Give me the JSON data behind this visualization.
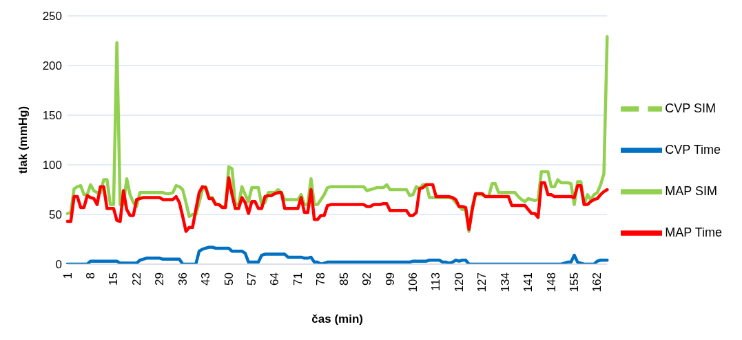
{
  "chart_data": {
    "type": "line",
    "xlabel": "čas (min)",
    "ylabel": "tlak (mmHg)",
    "ylim": [
      0,
      250
    ],
    "yticks": [
      0,
      50,
      100,
      150,
      200,
      250
    ],
    "grid": "y",
    "legend": "right",
    "categories": [
      "1",
      null,
      null,
      null,
      null,
      null,
      null,
      "8",
      null,
      null,
      null,
      null,
      null,
      null,
      "15",
      null,
      null,
      null,
      null,
      null,
      null,
      "22",
      null,
      null,
      null,
      null,
      null,
      null,
      "29",
      null,
      null,
      null,
      null,
      null,
      null,
      "36",
      null,
      null,
      null,
      null,
      null,
      null,
      "43",
      null,
      null,
      null,
      null,
      null,
      null,
      "50",
      null,
      null,
      null,
      null,
      null,
      null,
      "57",
      null,
      null,
      null,
      null,
      null,
      null,
      "64",
      null,
      null,
      null,
      null,
      null,
      null,
      "71",
      null,
      null,
      null,
      null,
      null,
      null,
      "78",
      null,
      null,
      null,
      null,
      null,
      null,
      "85",
      null,
      null,
      null,
      null,
      null,
      null,
      "92",
      null,
      null,
      null,
      null,
      null,
      null,
      "99",
      null,
      null,
      null,
      null,
      null,
      null,
      "106",
      null,
      null,
      null,
      null,
      null,
      null,
      "113",
      null,
      null,
      null,
      null,
      null,
      null,
      "120",
      null,
      null,
      null,
      null,
      null,
      null,
      "127",
      null,
      null,
      null,
      null,
      null,
      null,
      "134",
      null,
      null,
      null,
      null,
      null,
      null,
      "141",
      null,
      null,
      null,
      null,
      null,
      null,
      "148",
      null,
      null,
      null,
      null,
      null,
      null,
      "155",
      null,
      null,
      null,
      null,
      null,
      null,
      "162",
      null,
      null,
      null
    ],
    "series": [
      {
        "name": "CVP SIM",
        "color": "#92d050",
        "line_style": "dashed",
        "values": [
          null,
          null,
          null,
          null,
          null,
          null,
          null,
          null,
          null,
          null,
          null,
          null,
          null,
          null,
          null,
          null,
          null,
          null,
          null,
          null,
          null,
          null,
          null,
          null,
          null,
          null,
          null,
          null,
          null,
          null,
          null,
          null,
          null,
          null,
          null,
          null,
          null,
          null,
          null,
          null,
          null,
          null,
          null,
          null,
          null,
          null,
          null,
          null,
          null,
          null,
          null,
          null,
          null,
          null,
          null,
          null,
          null,
          null,
          null,
          null,
          null,
          null,
          null,
          null,
          null,
          null,
          null,
          null,
          null,
          null,
          null,
          null,
          null,
          null,
          null,
          null,
          null,
          null,
          null,
          null,
          null,
          null,
          null,
          null,
          null,
          null,
          null,
          null,
          null,
          null,
          null,
          null,
          null,
          null,
          null,
          null,
          null,
          null,
          null,
          null,
          null,
          null,
          null,
          null,
          null,
          null,
          null,
          null,
          null,
          null,
          null,
          null,
          null,
          null,
          null,
          null,
          null,
          null,
          null,
          null,
          null,
          null,
          null,
          null,
          null,
          null,
          null,
          null,
          null,
          null,
          null,
          null,
          null,
          null,
          null,
          null,
          null,
          null,
          null,
          null,
          null,
          null,
          null,
          null,
          null,
          null,
          null,
          null,
          null,
          null,
          null,
          null,
          null,
          null,
          null,
          null,
          null,
          null,
          null,
          null,
          null,
          null,
          null,
          null,
          null
        ]
      },
      {
        "name": "CVP Time",
        "color": "#0070c0",
        "line_style": "solid",
        "values": [
          0,
          0,
          0,
          0,
          0,
          0,
          0,
          3,
          3,
          3,
          3,
          3,
          3,
          3,
          3,
          3,
          1,
          1,
          1,
          1,
          1,
          1,
          4,
          5,
          6,
          6,
          6,
          6,
          6,
          5,
          5,
          5,
          5,
          5,
          5,
          0,
          0,
          0,
          0,
          0,
          13,
          15,
          16,
          17,
          17,
          16,
          16,
          16,
          16,
          16,
          13,
          13,
          13,
          13,
          11,
          2,
          2,
          2,
          2,
          9,
          10,
          10,
          10,
          10,
          10,
          10,
          10,
          7,
          7,
          7,
          7,
          7,
          6,
          6,
          7,
          2,
          2,
          0,
          1,
          2,
          2,
          2,
          2,
          2,
          2,
          2,
          2,
          2,
          2,
          2,
          2,
          2,
          2,
          2,
          2,
          2,
          2,
          2,
          2,
          2,
          2,
          2,
          2,
          2,
          2,
          3,
          3,
          3,
          3,
          3,
          4,
          4,
          4,
          4,
          2,
          2,
          1,
          2,
          4,
          3,
          4,
          4,
          0,
          0,
          0,
          0,
          0,
          0,
          0,
          0,
          0,
          0,
          0,
          0,
          0,
          0,
          0,
          0,
          0,
          0,
          0,
          0,
          0,
          0,
          0,
          0,
          0,
          0,
          0,
          0,
          0,
          1,
          2,
          2,
          9,
          2,
          1,
          0,
          0,
          0,
          0,
          3,
          4,
          4,
          4
        ]
      },
      {
        "name": "MAP SIM",
        "color": "#92d050",
        "line_style": "solid",
        "values": [
          51,
          52,
          76,
          78,
          79,
          70,
          70,
          80,
          74,
          72,
          72,
          85,
          85,
          60,
          60,
          223,
          60,
          60,
          86,
          70,
          62,
          58,
          72,
          72,
          72,
          72,
          72,
          72,
          72,
          72,
          71,
          71,
          72,
          79,
          78,
          75,
          62,
          48,
          50,
          50,
          62,
          75,
          78,
          67,
          67,
          61,
          60,
          58,
          58,
          98,
          96,
          60,
          60,
          78,
          70,
          63,
          77,
          77,
          77,
          60,
          62,
          72,
          72,
          72,
          75,
          72,
          65,
          65,
          65,
          65,
          65,
          70,
          60,
          60,
          86,
          60,
          60,
          65,
          70,
          77,
          78,
          78,
          78,
          78,
          78,
          78,
          78,
          78,
          78,
          78,
          78,
          74,
          75,
          76,
          77,
          77,
          77,
          80,
          75,
          75,
          75,
          75,
          75,
          75,
          69,
          70,
          78,
          76,
          80,
          80,
          67,
          67,
          67,
          67,
          67,
          67,
          67,
          66,
          62,
          58,
          55,
          55,
          33,
          58,
          70,
          70,
          70,
          68,
          68,
          81,
          81,
          72,
          72,
          72,
          72,
          72,
          72,
          68,
          65,
          63,
          66,
          65,
          64,
          65,
          93,
          93,
          93,
          78,
          78,
          85,
          82,
          82,
          82,
          81,
          60,
          83,
          83,
          60,
          70,
          65,
          70,
          72,
          80,
          91,
          229
        ]
      },
      {
        "name": "MAP Time",
        "color": "#ff0000",
        "line_style": "solid",
        "values": [
          43,
          43,
          68,
          68,
          57,
          57,
          69,
          67,
          66,
          60,
          78,
          78,
          56,
          56,
          56,
          44,
          43,
          74,
          55,
          49,
          49,
          65,
          66,
          67,
          67,
          67,
          67,
          67,
          67,
          65,
          65,
          65,
          65,
          68,
          62,
          48,
          33,
          37,
          37,
          55,
          72,
          78,
          77,
          66,
          66,
          60,
          60,
          57,
          57,
          87,
          70,
          56,
          56,
          67,
          62,
          51,
          63,
          63,
          56,
          56,
          68,
          69,
          69,
          71,
          72,
          72,
          56,
          56,
          56,
          56,
          56,
          67,
          52,
          52,
          75,
          45,
          45,
          49,
          49,
          59,
          60,
          60,
          60,
          60,
          60,
          60,
          60,
          60,
          60,
          60,
          60,
          58,
          58,
          60,
          60,
          60,
          61,
          61,
          54,
          54,
          54,
          54,
          54,
          54,
          49,
          49,
          52,
          76,
          77,
          80,
          80,
          80,
          68,
          68,
          68,
          68,
          68,
          67,
          65,
          58,
          58,
          57,
          35,
          55,
          71,
          71,
          71,
          68,
          68,
          68,
          68,
          68,
          68,
          68,
          68,
          59,
          59,
          59,
          59,
          59,
          55,
          51,
          51,
          47,
          82,
          82,
          70,
          70,
          68,
          68,
          68,
          68,
          68,
          68,
          67,
          79,
          79,
          60,
          60,
          63,
          65,
          66,
          70,
          73,
          75
        ]
      }
    ]
  }
}
